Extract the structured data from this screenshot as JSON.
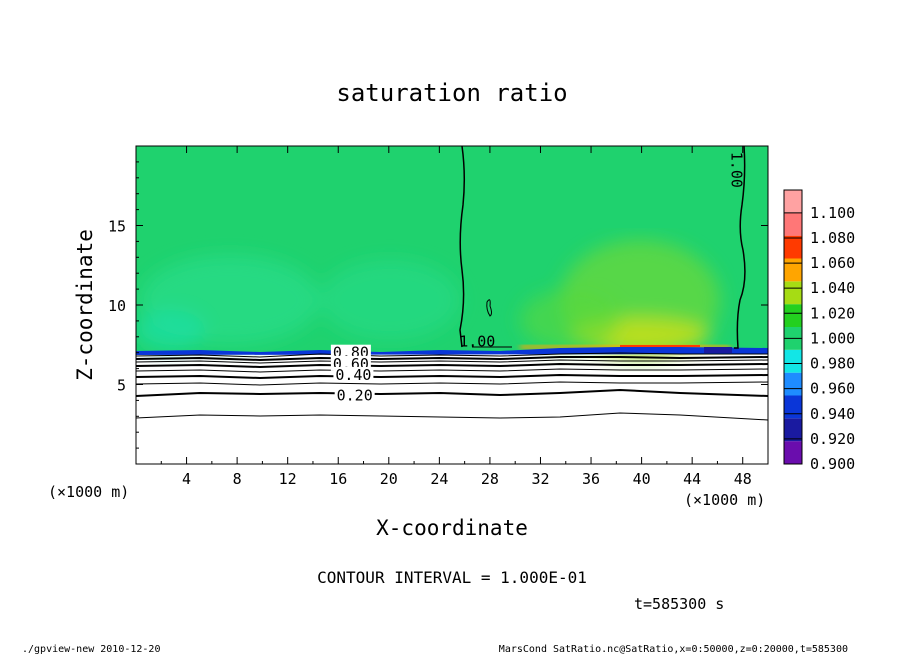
{
  "chart_data": {
    "type": "heatmap",
    "title": "saturation ratio",
    "xlabel": "X-coordinate",
    "ylabel": "Z-coordinate",
    "x_unit": "(×1000 m)",
    "y_unit": "(×1000 m)",
    "xlim": [
      0,
      50
    ],
    "ylim": [
      0,
      20
    ],
    "x_ticks": [
      4,
      8,
      12,
      16,
      20,
      24,
      28,
      32,
      36,
      40,
      44,
      48
    ],
    "y_ticks": [
      5,
      10,
      15
    ],
    "colorbar": {
      "levels": [
        "0.900",
        "0.920",
        "0.940",
        "0.960",
        "0.980",
        "1.000",
        "1.020",
        "1.040",
        "1.060",
        "1.080",
        "1.100"
      ],
      "colors": [
        "#6a0dad",
        "#1a1aa0",
        "#0a36d8",
        "#1e8cff",
        "#12e6e6",
        "#1fd26e",
        "#23d01f",
        "#a6dc14",
        "#ffa500",
        "#ff3a00",
        "#ff7777",
        "#ffa2a2"
      ]
    },
    "contour_labels": [
      {
        "text": "0.80",
        "x": 17,
        "z": 7.0
      },
      {
        "text": "0.60",
        "x": 17,
        "z": 6.3
      },
      {
        "text": "0.40",
        "x": 17.2,
        "z": 5.6
      },
      {
        "text": "0.20",
        "x": 17.3,
        "z": 4.3
      },
      {
        "text": "1.00",
        "x": 27,
        "z": 7.7
      },
      {
        "text": "1.00",
        "x": 47.5,
        "z": 18.5
      }
    ],
    "contour_interval_text": "CONTOUR INTERVAL = 1.000E-01",
    "time_text": "t=585300 s"
  },
  "footer": {
    "left": "./gpview-new  2010-12-20",
    "right": "MarsCond_SatRatio.nc@SatRatio,x=0:50000,z=0:20000,t=585300"
  }
}
